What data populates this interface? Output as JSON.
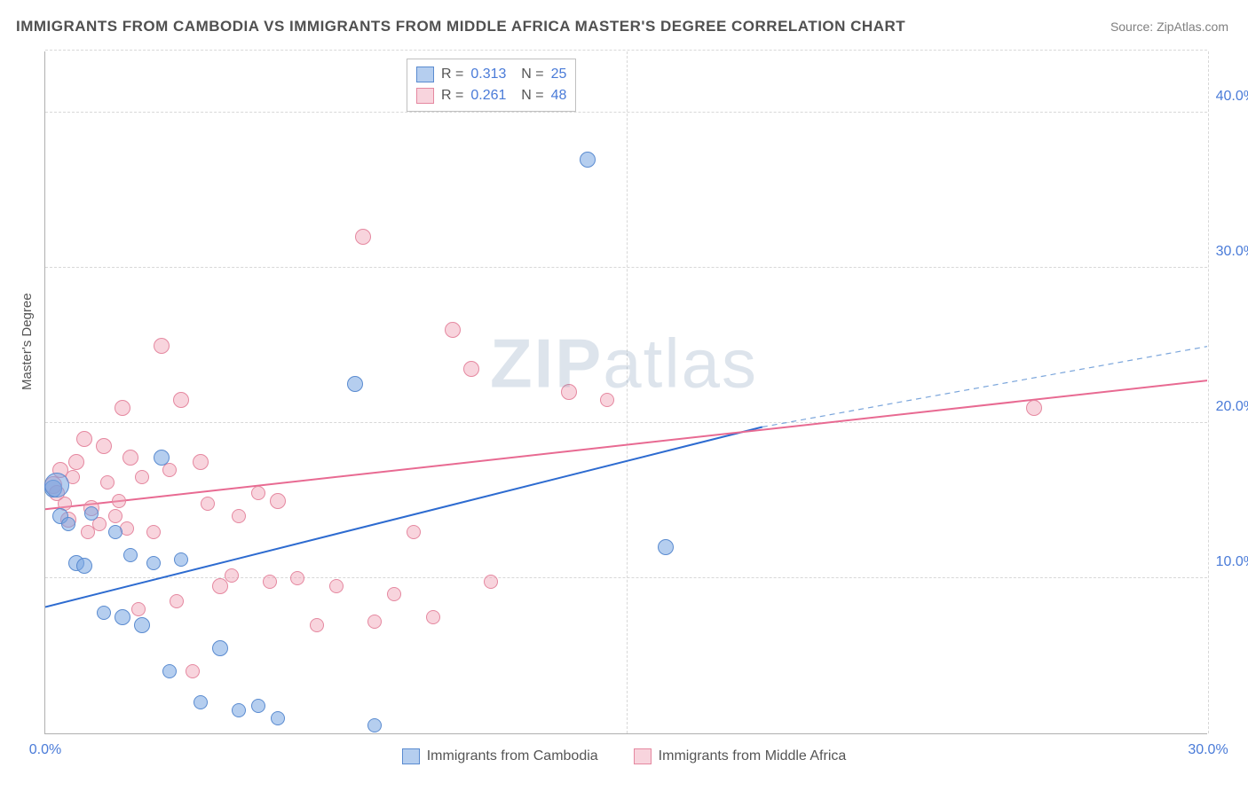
{
  "title": "IMMIGRANTS FROM CAMBODIA VS IMMIGRANTS FROM MIDDLE AFRICA MASTER'S DEGREE CORRELATION CHART",
  "source": "Source: ZipAtlas.com",
  "y_axis_title": "Master's Degree",
  "watermark_bold": "ZIP",
  "watermark_light": "atlas",
  "chart": {
    "type": "scatter",
    "xlim": [
      0,
      30
    ],
    "ylim": [
      0,
      44
    ],
    "x_ticks": [
      0,
      15,
      30
    ],
    "x_tick_labels": [
      "0.0%",
      "",
      "30.0%"
    ],
    "y_ticks": [
      10,
      20,
      30,
      40
    ],
    "y_tick_labels": [
      "10.0%",
      "20.0%",
      "30.0%",
      "40.0%"
    ],
    "background_color": "#ffffff",
    "grid_color": "#d8d8d8",
    "axis_color": "#b0b0b0",
    "label_color": "#4a7bd8",
    "series": [
      {
        "name": "Immigrants from Cambodia",
        "code": "b",
        "fill_color": "#78a5e1",
        "fill_opacity": 0.55,
        "stroke_color": "#5a8bd0",
        "r_value": "0.313",
        "n_value": "25",
        "trend": {
          "x1": 0,
          "y1": 8.2,
          "x2": 18.5,
          "y2": 19.8,
          "color": "#2d6bd0",
          "width": 2
        },
        "trend_dash": {
          "x1": 18.5,
          "y1": 19.8,
          "x2": 30,
          "y2": 25.0,
          "color": "#7aa5db",
          "width": 1.2
        },
        "points": [
          {
            "x": 0.2,
            "y": 15.8,
            "r": 10
          },
          {
            "x": 0.3,
            "y": 16.0,
            "r": 14
          },
          {
            "x": 0.4,
            "y": 14.0,
            "r": 9
          },
          {
            "x": 0.6,
            "y": 13.5,
            "r": 8
          },
          {
            "x": 0.8,
            "y": 11.0,
            "r": 9
          },
          {
            "x": 1.0,
            "y": 10.8,
            "r": 9
          },
          {
            "x": 1.2,
            "y": 14.2,
            "r": 8
          },
          {
            "x": 1.5,
            "y": 7.8,
            "r": 8
          },
          {
            "x": 1.8,
            "y": 13.0,
            "r": 8
          },
          {
            "x": 2.0,
            "y": 7.5,
            "r": 9
          },
          {
            "x": 2.2,
            "y": 11.5,
            "r": 8
          },
          {
            "x": 2.5,
            "y": 7.0,
            "r": 9
          },
          {
            "x": 2.8,
            "y": 11.0,
            "r": 8
          },
          {
            "x": 3.0,
            "y": 17.8,
            "r": 9
          },
          {
            "x": 3.2,
            "y": 4.0,
            "r": 8
          },
          {
            "x": 3.5,
            "y": 11.2,
            "r": 8
          },
          {
            "x": 4.0,
            "y": 2.0,
            "r": 8
          },
          {
            "x": 4.5,
            "y": 5.5,
            "r": 9
          },
          {
            "x": 5.0,
            "y": 1.5,
            "r": 8
          },
          {
            "x": 5.5,
            "y": 1.8,
            "r": 8
          },
          {
            "x": 6.0,
            "y": 1.0,
            "r": 8
          },
          {
            "x": 8.0,
            "y": 22.5,
            "r": 9
          },
          {
            "x": 8.5,
            "y": 0.5,
            "r": 8
          },
          {
            "x": 14.0,
            "y": 37.0,
            "r": 9
          },
          {
            "x": 16.0,
            "y": 12.0,
            "r": 9
          }
        ]
      },
      {
        "name": "Immigrants from Middle Africa",
        "code": "p",
        "fill_color": "#f0a0b4",
        "fill_opacity": 0.45,
        "stroke_color": "#e588a0",
        "r_value": "0.261",
        "n_value": "48",
        "trend": {
          "x1": 0,
          "y1": 14.5,
          "x2": 30,
          "y2": 22.8,
          "color": "#e86a92",
          "width": 2
        },
        "points": [
          {
            "x": 0.2,
            "y": 16.0,
            "r": 10
          },
          {
            "x": 0.3,
            "y": 15.5,
            "r": 9
          },
          {
            "x": 0.4,
            "y": 17.0,
            "r": 9
          },
          {
            "x": 0.5,
            "y": 14.8,
            "r": 8
          },
          {
            "x": 0.6,
            "y": 13.8,
            "r": 9
          },
          {
            "x": 0.7,
            "y": 16.5,
            "r": 8
          },
          {
            "x": 0.8,
            "y": 17.5,
            "r": 9
          },
          {
            "x": 1.0,
            "y": 19.0,
            "r": 9
          },
          {
            "x": 1.1,
            "y": 13.0,
            "r": 8
          },
          {
            "x": 1.2,
            "y": 14.5,
            "r": 9
          },
          {
            "x": 1.4,
            "y": 13.5,
            "r": 8
          },
          {
            "x": 1.5,
            "y": 18.5,
            "r": 9
          },
          {
            "x": 1.6,
            "y": 16.2,
            "r": 8
          },
          {
            "x": 1.8,
            "y": 14.0,
            "r": 8
          },
          {
            "x": 1.9,
            "y": 15.0,
            "r": 8
          },
          {
            "x": 2.0,
            "y": 21.0,
            "r": 9
          },
          {
            "x": 2.1,
            "y": 13.2,
            "r": 8
          },
          {
            "x": 2.2,
            "y": 17.8,
            "r": 9
          },
          {
            "x": 2.4,
            "y": 8.0,
            "r": 8
          },
          {
            "x": 2.5,
            "y": 16.5,
            "r": 8
          },
          {
            "x": 2.8,
            "y": 13.0,
            "r": 8
          },
          {
            "x": 3.0,
            "y": 25.0,
            "r": 9
          },
          {
            "x": 3.2,
            "y": 17.0,
            "r": 8
          },
          {
            "x": 3.4,
            "y": 8.5,
            "r": 8
          },
          {
            "x": 3.5,
            "y": 21.5,
            "r": 9
          },
          {
            "x": 3.8,
            "y": 4.0,
            "r": 8
          },
          {
            "x": 4.0,
            "y": 17.5,
            "r": 9
          },
          {
            "x": 4.2,
            "y": 14.8,
            "r": 8
          },
          {
            "x": 4.5,
            "y": 9.5,
            "r": 9
          },
          {
            "x": 4.8,
            "y": 10.2,
            "r": 8
          },
          {
            "x": 5.0,
            "y": 14.0,
            "r": 8
          },
          {
            "x": 5.5,
            "y": 15.5,
            "r": 8
          },
          {
            "x": 5.8,
            "y": 9.8,
            "r": 8
          },
          {
            "x": 6.0,
            "y": 15.0,
            "r": 9
          },
          {
            "x": 6.5,
            "y": 10.0,
            "r": 8
          },
          {
            "x": 7.0,
            "y": 7.0,
            "r": 8
          },
          {
            "x": 7.5,
            "y": 9.5,
            "r": 8
          },
          {
            "x": 8.2,
            "y": 32.0,
            "r": 9
          },
          {
            "x": 8.5,
            "y": 7.2,
            "r": 8
          },
          {
            "x": 9.0,
            "y": 9.0,
            "r": 8
          },
          {
            "x": 9.5,
            "y": 13.0,
            "r": 8
          },
          {
            "x": 10.0,
            "y": 7.5,
            "r": 8
          },
          {
            "x": 10.5,
            "y": 26.0,
            "r": 9
          },
          {
            "x": 11.0,
            "y": 23.5,
            "r": 9
          },
          {
            "x": 11.5,
            "y": 9.8,
            "r": 8
          },
          {
            "x": 13.5,
            "y": 22.0,
            "r": 9
          },
          {
            "x": 14.5,
            "y": 21.5,
            "r": 8
          },
          {
            "x": 25.5,
            "y": 21.0,
            "r": 9
          }
        ]
      }
    ]
  },
  "legend_bottom": [
    {
      "code": "b",
      "label": "Immigrants from Cambodia"
    },
    {
      "code": "p",
      "label": "Immigrants from Middle Africa"
    }
  ]
}
